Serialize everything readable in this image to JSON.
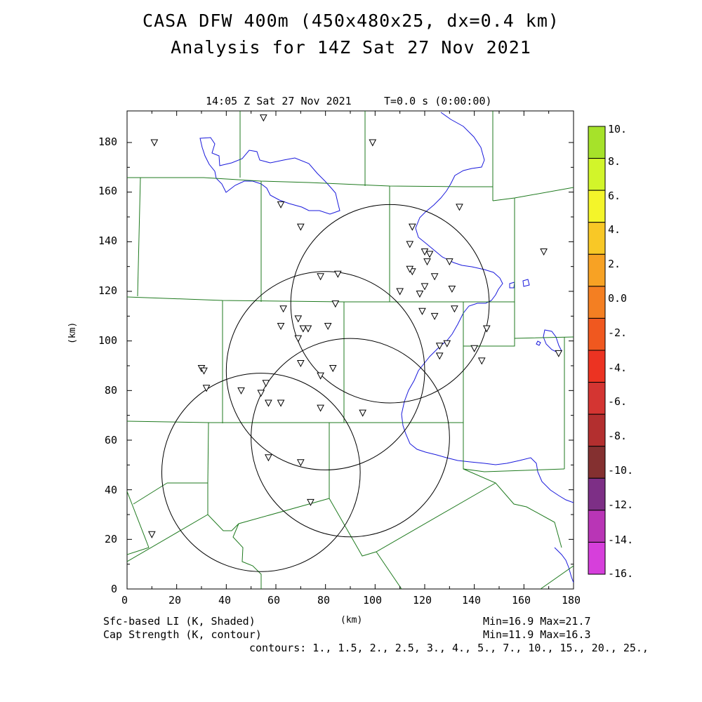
{
  "header": {
    "title_line1": "CASA DFW 400m (450x480x25, dx=0.4 km)",
    "title_line2": "Analysis for 14Z Sat 27 Nov 2021",
    "valid_time": "14:05 Z Sat 27 Nov 2021",
    "forecast_time": "T=0.0 s (0:00:00)"
  },
  "axes": {
    "x_label": "(km)",
    "y_label": "(km)",
    "x_ticks": [
      "0",
      "20",
      "40",
      "60",
      "80",
      "100",
      "120",
      "140",
      "160",
      "180"
    ],
    "y_ticks": [
      "0",
      "20",
      "40",
      "60",
      "80",
      "100",
      "120",
      "140",
      "160",
      "180"
    ]
  },
  "colorbar": {
    "labels": [
      "10.",
      "8.",
      "6.",
      "4.",
      "2.",
      "0.0",
      "-2.",
      "-4.",
      "-6.",
      "-8.",
      "-10.",
      "-12.",
      "-14.",
      "-16."
    ],
    "colors": [
      "#a6e22a",
      "#d2f52a",
      "#f4f52a",
      "#f8c826",
      "#f7a224",
      "#f47f22",
      "#f0581f",
      "#ec3322",
      "#d43532",
      "#b32f2f",
      "#843030",
      "#7d2f86",
      "#b935b6",
      "#d63fdb"
    ]
  },
  "footer": {
    "left1": "Sfc-based LI (K, Shaded)",
    "left2": "Cap Strength (K, contour)",
    "center": "(km)",
    "right1": "Min=16.9 Max=21.7",
    "right2": "Min=11.9 Max=16.3",
    "contours": "contours: 1., 1.5, 2., 2.5, 3., 4., 5., 7., 10., 15., 20., 25.,"
  },
  "map": {
    "radar_rings_km": [
      {
        "cx": 106,
        "cy": 115,
        "r": 40
      },
      {
        "cx": 80,
        "cy": 88,
        "r": 40
      },
      {
        "cx": 90,
        "cy": 61,
        "r": 40
      },
      {
        "cx": 54,
        "cy": 47,
        "r": 40
      }
    ],
    "stations_km": [
      [
        55,
        190
      ],
      [
        11,
        180
      ],
      [
        99,
        180
      ],
      [
        62,
        155
      ],
      [
        134,
        154
      ],
      [
        70,
        146
      ],
      [
        115,
        146
      ],
      [
        114,
        139
      ],
      [
        120,
        136
      ],
      [
        122,
        135
      ],
      [
        168,
        136
      ],
      [
        121,
        132
      ],
      [
        130,
        132
      ],
      [
        115,
        128
      ],
      [
        114,
        129
      ],
      [
        124,
        126
      ],
      [
        78,
        126
      ],
      [
        85,
        127
      ],
      [
        120,
        122
      ],
      [
        131,
        121
      ],
      [
        110,
        120
      ],
      [
        118,
        119
      ],
      [
        63,
        113
      ],
      [
        84,
        115
      ],
      [
        119,
        112
      ],
      [
        124,
        110
      ],
      [
        132,
        113
      ],
      [
        69,
        109
      ],
      [
        62,
        106
      ],
      [
        71,
        105
      ],
      [
        73,
        105
      ],
      [
        81,
        106
      ],
      [
        145,
        105
      ],
      [
        69,
        101
      ],
      [
        129,
        99
      ],
      [
        126,
        98
      ],
      [
        140,
        97
      ],
      [
        126,
        94
      ],
      [
        174,
        95
      ],
      [
        143,
        92
      ],
      [
        70,
        91
      ],
      [
        83,
        89
      ],
      [
        30,
        89
      ],
      [
        31,
        88
      ],
      [
        78,
        86
      ],
      [
        56,
        83
      ],
      [
        32,
        81
      ],
      [
        46,
        80
      ],
      [
        54,
        79
      ],
      [
        57,
        75
      ],
      [
        62,
        75
      ],
      [
        78,
        73
      ],
      [
        95,
        71
      ],
      [
        57,
        53
      ],
      [
        70,
        51
      ],
      [
        74,
        35
      ],
      [
        10,
        22
      ]
    ]
  }
}
